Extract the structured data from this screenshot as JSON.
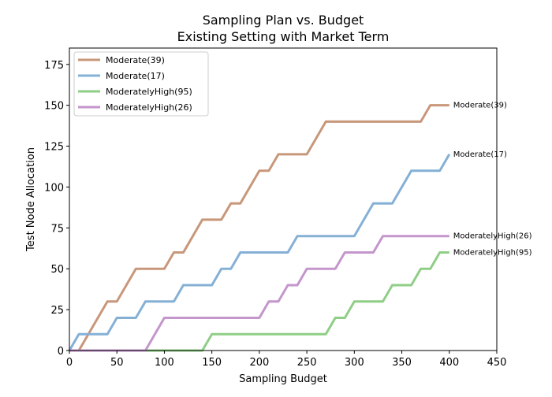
{
  "chart_data": {
    "type": "line",
    "title": "Sampling Plan vs. Budget",
    "subtitle": "Existing Setting with Market Term",
    "xlabel": "Sampling Budget",
    "ylabel": "Test Node Allocation",
    "xlim": [
      0,
      450
    ],
    "ylim": [
      0,
      185
    ],
    "xticks": [
      0,
      50,
      100,
      150,
      200,
      250,
      300,
      350,
      400,
      450
    ],
    "yticks": [
      0,
      25,
      50,
      75,
      100,
      125,
      150,
      175
    ],
    "grid": false,
    "legend_position": "top-left",
    "series": [
      {
        "name": "Moderate(39)",
        "color": "#c8977a",
        "end_label": "Moderate(39)",
        "x": [
          0,
          10,
          40,
          50,
          70,
          100,
          110,
          120,
          140,
          160,
          170,
          180,
          200,
          210,
          220,
          250,
          270,
          370,
          380,
          400
        ],
        "y": [
          0,
          0,
          30,
          30,
          50,
          50,
          60,
          60,
          80,
          80,
          90,
          90,
          110,
          110,
          120,
          120,
          140,
          140,
          150,
          150
        ]
      },
      {
        "name": "Moderate(17)",
        "color": "#85b0d6",
        "end_label": "Moderate(17)",
        "x": [
          0,
          10,
          40,
          50,
          70,
          80,
          110,
          120,
          150,
          160,
          170,
          180,
          230,
          240,
          300,
          320,
          340,
          360,
          390,
          400
        ],
        "y": [
          0,
          10,
          10,
          20,
          20,
          30,
          30,
          40,
          40,
          50,
          50,
          60,
          60,
          70,
          70,
          90,
          90,
          110,
          110,
          120
        ]
      },
      {
        "name": "ModeratelyHigh(95)",
        "color": "#8fce86",
        "end_label": "ModeratelyHigh(95)",
        "x": [
          0,
          140,
          150,
          270,
          280,
          290,
          300,
          330,
          340,
          360,
          370,
          380,
          390,
          400
        ],
        "y": [
          0,
          0,
          10,
          10,
          20,
          20,
          30,
          30,
          40,
          40,
          50,
          50,
          60,
          60
        ]
      },
      {
        "name": "ModeratelyHigh(26)",
        "color": "#c496cc",
        "end_label": "ModeratelyHigh(26)",
        "x": [
          0,
          80,
          100,
          200,
          210,
          220,
          230,
          240,
          250,
          280,
          290,
          320,
          330,
          400
        ],
        "y": [
          0,
          0,
          20,
          20,
          30,
          30,
          40,
          40,
          50,
          50,
          60,
          60,
          70,
          70
        ]
      }
    ]
  }
}
